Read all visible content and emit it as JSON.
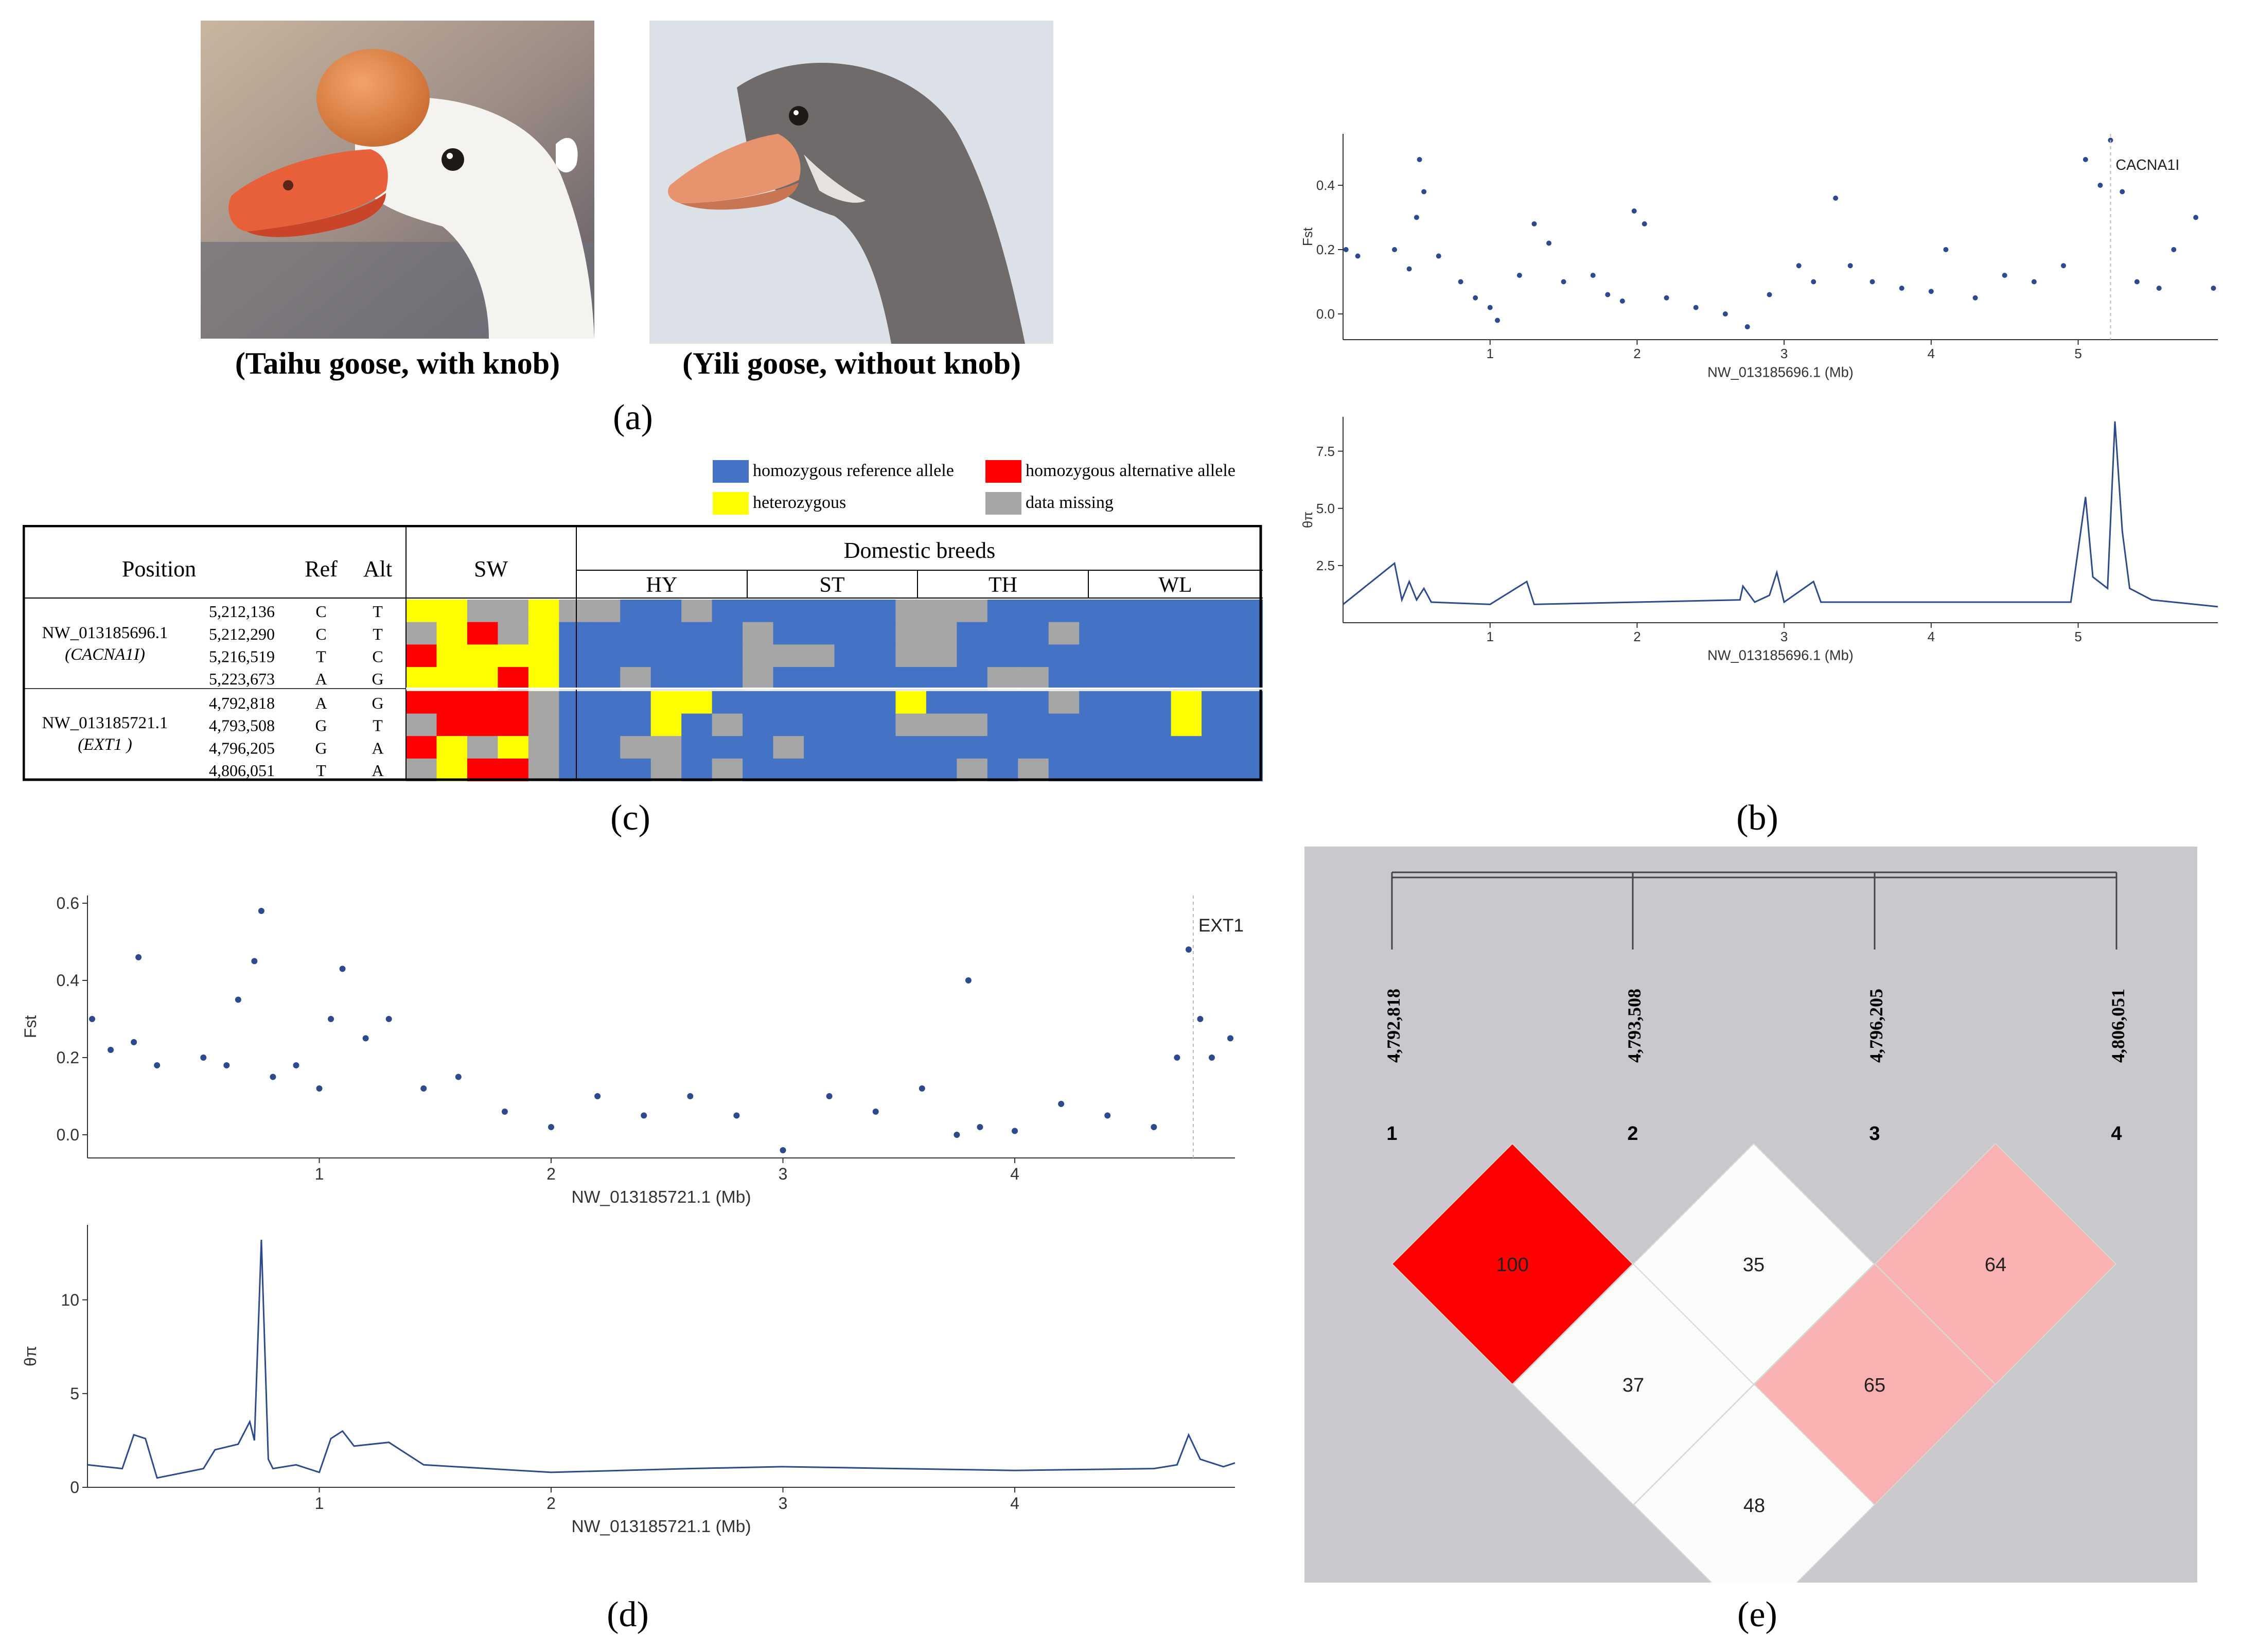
{
  "panel_a": {
    "label": "(a)",
    "captions": [
      "(Taihu goose, with knob)",
      "(Yili goose, without knob)"
    ]
  },
  "panel_b": {
    "label": "(b)"
  },
  "panel_c": {
    "label": "(c)",
    "legend": [
      "homozygous reference allele",
      "homozygous alternative allele",
      "heterozygous",
      "data missing"
    ],
    "legend_colors": [
      "#4472c4",
      "#ff0000",
      "#ffff00",
      "#a6a6a6"
    ],
    "headers": {
      "position": "Position",
      "ref": "Ref",
      "alt": "Alt",
      "sw": "SW",
      "domestic": "Domestic breeds",
      "breeds": [
        "HY",
        "ST",
        "TH",
        "WL"
      ]
    },
    "groups": [
      {
        "contig": "NW_013185696.1",
        "gene": "(CACNA1I)"
      },
      {
        "contig": "NW_013185721.1",
        "gene": "(EXT1 )"
      }
    ],
    "rows": [
      {
        "pos": "5,212,136",
        "ref": "C",
        "alt": "T"
      },
      {
        "pos": "5,212,290",
        "ref": "C",
        "alt": "T"
      },
      {
        "pos": "5,216,519",
        "ref": "T",
        "alt": "C"
      },
      {
        "pos": "5,223,673",
        "ref": "A",
        "alt": "G"
      },
      {
        "pos": "4,792,818",
        "ref": "A",
        "alt": "G"
      },
      {
        "pos": "4,793,508",
        "ref": "G",
        "alt": "T"
      },
      {
        "pos": "4,796,205",
        "ref": "G",
        "alt": "A"
      },
      {
        "pos": "4,806,051",
        "ref": "T",
        "alt": "A"
      }
    ],
    "genotypes": [
      "YYGGYGGBBGBBBBBBGGGBBBBBBBBB",
      "GYRGYBBBBBBGBBBBGGBBBGBBBBBB",
      "RYYYYBBBBBBGGGBBGGBBBBBBBBBB",
      "YYYRYBBGBBBGBBBBBBBGGBBBBBBB",
      "RRRRGBBBYYBBBBBBYBBBBGBBBYBB",
      "GRRRGBBBYBGBBBBBGGGBBBBBBYBB",
      "RYGYGBBGGBBBGBBBBBBBBBBBBBBB",
      "GYRRGBBBGBGBBBBBBBGBGBBBBBBB"
    ]
  },
  "panel_d": {
    "label": "(d)"
  },
  "panel_e": {
    "label": "(e)",
    "markers": [
      "4,792,818",
      "4,793,508",
      "4,796,205",
      "4,806,051"
    ],
    "indices": [
      "1",
      "2",
      "3",
      "4"
    ],
    "ld_values": [
      {
        "pair": "1-2",
        "value": "100",
        "color": "#ff0000"
      },
      {
        "pair": "2-3",
        "value": "35",
        "color": "#fcfcfa"
      },
      {
        "pair": "3-4",
        "value": "64",
        "color": "#f9b1b1"
      },
      {
        "pair": "1-3",
        "value": "37",
        "color": "#fcfcfa"
      },
      {
        "pair": "2-4",
        "value": "65",
        "color": "#f9b1b1"
      },
      {
        "pair": "1-4",
        "value": "48",
        "color": "#fcfcfa"
      }
    ]
  },
  "chart_data": [
    {
      "id": "b_fst",
      "type": "scatter",
      "xlabel": "NW_013185696.1 (Mb)",
      "ylabel": "Fst",
      "xlim": [
        0,
        5.95
      ],
      "ylim": [
        -0.08,
        0.56
      ],
      "xticks": [
        "1",
        "2",
        "3",
        "4",
        "5"
      ],
      "yticks": [
        "0.0",
        "0.2",
        "0.4"
      ],
      "annotation": {
        "label": "CACNA1I",
        "x": 5.22
      },
      "series": [
        {
          "name": "Fst",
          "points": [
            [
              0.02,
              0.2
            ],
            [
              0.1,
              0.18
            ],
            [
              0.35,
              0.2
            ],
            [
              0.45,
              0.14
            ],
            [
              0.5,
              0.3
            ],
            [
              0.52,
              0.48
            ],
            [
              0.55,
              0.38
            ],
            [
              0.65,
              0.18
            ],
            [
              0.8,
              0.1
            ],
            [
              0.9,
              0.05
            ],
            [
              1.0,
              0.02
            ],
            [
              1.05,
              -0.02
            ],
            [
              1.2,
              0.12
            ],
            [
              1.3,
              0.28
            ],
            [
              1.4,
              0.22
            ],
            [
              1.5,
              0.1
            ],
            [
              1.7,
              0.12
            ],
            [
              1.8,
              0.06
            ],
            [
              1.9,
              0.04
            ],
            [
              1.98,
              0.32
            ],
            [
              2.05,
              0.28
            ],
            [
              2.2,
              0.05
            ],
            [
              2.4,
              0.02
            ],
            [
              2.6,
              0.0
            ],
            [
              2.75,
              -0.04
            ],
            [
              2.9,
              0.06
            ],
            [
              3.1,
              0.15
            ],
            [
              3.2,
              0.1
            ],
            [
              3.35,
              0.36
            ],
            [
              3.45,
              0.15
            ],
            [
              3.6,
              0.1
            ],
            [
              3.8,
              0.08
            ],
            [
              4.0,
              0.07
            ],
            [
              4.1,
              0.2
            ],
            [
              4.3,
              0.05
            ],
            [
              4.5,
              0.12
            ],
            [
              4.7,
              0.1
            ],
            [
              4.9,
              0.15
            ],
            [
              5.05,
              0.48
            ],
            [
              5.15,
              0.4
            ],
            [
              5.22,
              0.54
            ],
            [
              5.3,
              0.38
            ],
            [
              5.4,
              0.1
            ],
            [
              5.55,
              0.08
            ],
            [
              5.65,
              0.2
            ],
            [
              5.8,
              0.3
            ],
            [
              5.92,
              0.08
            ]
          ]
        }
      ]
    },
    {
      "id": "b_pi",
      "type": "line",
      "xlabel": "NW_013185696.1 (Mb)",
      "ylabel": "θπ",
      "xlim": [
        0,
        5.95
      ],
      "ylim": [
        0,
        9
      ],
      "xticks": [
        "1",
        "2",
        "3",
        "4",
        "5"
      ],
      "yticks": [
        "2.5",
        "5.0",
        "7.5"
      ],
      "series": [
        {
          "name": "θπ",
          "points": [
            [
              0.0,
              0.8
            ],
            [
              0.35,
              2.6
            ],
            [
              0.4,
              1.0
            ],
            [
              0.45,
              1.8
            ],
            [
              0.5,
              1.0
            ],
            [
              0.55,
              1.5
            ],
            [
              0.6,
              0.9
            ],
            [
              1.0,
              0.8
            ],
            [
              1.25,
              1.8
            ],
            [
              1.3,
              0.8
            ],
            [
              2.0,
              0.9
            ],
            [
              2.7,
              1.0
            ],
            [
              2.72,
              1.6
            ],
            [
              2.8,
              0.9
            ],
            [
              2.9,
              1.2
            ],
            [
              2.95,
              2.2
            ],
            [
              3.0,
              0.9
            ],
            [
              3.2,
              1.8
            ],
            [
              3.25,
              0.9
            ],
            [
              4.0,
              0.9
            ],
            [
              4.95,
              0.9
            ],
            [
              5.05,
              5.5
            ],
            [
              5.1,
              2.0
            ],
            [
              5.2,
              1.5
            ],
            [
              5.25,
              8.8
            ],
            [
              5.3,
              4.0
            ],
            [
              5.35,
              1.5
            ],
            [
              5.5,
              1.0
            ],
            [
              5.95,
              0.7
            ]
          ]
        }
      ]
    },
    {
      "id": "d_fst",
      "type": "scatter",
      "xlabel": "NW_013185721.1 (Mb)",
      "ylabel": "Fst",
      "xlim": [
        0,
        4.95
      ],
      "ylim": [
        -0.06,
        0.62
      ],
      "xticks": [
        "1",
        "2",
        "3",
        "4"
      ],
      "yticks": [
        "0.0",
        "0.2",
        "0.4",
        "0.6"
      ],
      "annotation": {
        "label": "EXT1",
        "x": 4.77
      },
      "series": [
        {
          "name": "Fst",
          "points": [
            [
              0.02,
              0.3
            ],
            [
              0.1,
              0.22
            ],
            [
              0.2,
              0.24
            ],
            [
              0.22,
              0.46
            ],
            [
              0.3,
              0.18
            ],
            [
              0.5,
              0.2
            ],
            [
              0.6,
              0.18
            ],
            [
              0.65,
              0.35
            ],
            [
              0.72,
              0.45
            ],
            [
              0.75,
              0.58
            ],
            [
              0.8,
              0.15
            ],
            [
              0.9,
              0.18
            ],
            [
              1.0,
              0.12
            ],
            [
              1.05,
              0.3
            ],
            [
              1.1,
              0.43
            ],
            [
              1.2,
              0.25
            ],
            [
              1.3,
              0.3
            ],
            [
              1.45,
              0.12
            ],
            [
              1.6,
              0.15
            ],
            [
              1.8,
              0.06
            ],
            [
              2.0,
              0.02
            ],
            [
              2.2,
              0.1
            ],
            [
              2.4,
              0.05
            ],
            [
              2.6,
              0.1
            ],
            [
              2.8,
              0.05
            ],
            [
              3.0,
              -0.04
            ],
            [
              3.2,
              0.1
            ],
            [
              3.4,
              0.06
            ],
            [
              3.6,
              0.12
            ],
            [
              3.75,
              0.0
            ],
            [
              3.8,
              0.4
            ],
            [
              3.85,
              0.02
            ],
            [
              4.0,
              0.01
            ],
            [
              4.2,
              0.08
            ],
            [
              4.4,
              0.05
            ],
            [
              4.6,
              0.02
            ],
            [
              4.7,
              0.2
            ],
            [
              4.75,
              0.48
            ],
            [
              4.8,
              0.3
            ],
            [
              4.85,
              0.2
            ],
            [
              4.93,
              0.25
            ]
          ]
        }
      ]
    },
    {
      "id": "d_pi",
      "type": "line",
      "xlabel": "NW_013185721.1 (Mb)",
      "ylabel": "θπ",
      "xlim": [
        0,
        4.95
      ],
      "ylim": [
        0,
        14
      ],
      "xticks": [
        "1",
        "2",
        "3",
        "4"
      ],
      "yticks": [
        "0",
        "5",
        "10"
      ],
      "series": [
        {
          "name": "θπ",
          "points": [
            [
              0.0,
              1.2
            ],
            [
              0.15,
              1.0
            ],
            [
              0.2,
              2.8
            ],
            [
              0.25,
              2.6
            ],
            [
              0.3,
              0.5
            ],
            [
              0.5,
              1.0
            ],
            [
              0.55,
              2.0
            ],
            [
              0.65,
              2.3
            ],
            [
              0.7,
              3.5
            ],
            [
              0.72,
              2.5
            ],
            [
              0.75,
              13.2
            ],
            [
              0.78,
              1.5
            ],
            [
              0.8,
              1.0
            ],
            [
              0.9,
              1.2
            ],
            [
              1.0,
              0.8
            ],
            [
              1.05,
              2.6
            ],
            [
              1.1,
              3.0
            ],
            [
              1.15,
              2.2
            ],
            [
              1.3,
              2.4
            ],
            [
              1.45,
              1.2
            ],
            [
              2.0,
              0.8
            ],
            [
              2.6,
              1.0
            ],
            [
              3.0,
              1.1
            ],
            [
              3.5,
              1.0
            ],
            [
              4.0,
              0.9
            ],
            [
              4.6,
              1.0
            ],
            [
              4.7,
              1.2
            ],
            [
              4.75,
              2.8
            ],
            [
              4.8,
              1.5
            ],
            [
              4.9,
              1.1
            ],
            [
              4.95,
              1.3
            ]
          ]
        }
      ]
    }
  ]
}
